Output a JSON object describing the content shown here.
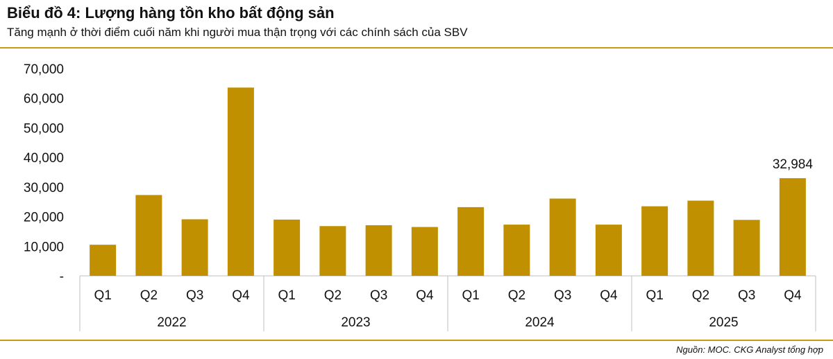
{
  "header": {
    "title": "Biểu đồ 4: Lượng hàng tồn kho bất động sản",
    "subtitle": "Tăng mạnh ở thời điểm cuối năm khi người mua thận trọng với các chính sách của SBV"
  },
  "footer": {
    "source": "Nguồn: MOC. CKG Analyst tổng hợp"
  },
  "colors": {
    "bar": "#c09000",
    "rule": "#c89a12",
    "axis": "#bfbfbf"
  },
  "chart_data": {
    "type": "bar",
    "title": "",
    "xlabel": "",
    "ylabel": "",
    "ylim": [
      0,
      70000
    ],
    "y_ticks": [
      0,
      10000,
      20000,
      30000,
      40000,
      50000,
      60000,
      70000
    ],
    "y_tick_labels": [
      "-",
      "10,000",
      "20,000",
      "30,000",
      "40,000",
      "50,000",
      "60,000",
      "70,000"
    ],
    "grid": false,
    "groups": [
      {
        "label": "2022",
        "categories": [
          "Q1",
          "Q2",
          "Q3",
          "Q4"
        ],
        "values": [
          10500,
          27300,
          19100,
          63600
        ]
      },
      {
        "label": "2023",
        "categories": [
          "Q1",
          "Q2",
          "Q3",
          "Q4"
        ],
        "values": [
          19000,
          16800,
          17100,
          16500
        ]
      },
      {
        "label": "2024",
        "categories": [
          "Q1",
          "Q2",
          "Q3",
          "Q4"
        ],
        "values": [
          23200,
          17300,
          26100,
          17300
        ]
      },
      {
        "label": "2025",
        "categories": [
          "Q1",
          "Q2",
          "Q3",
          "Q4"
        ],
        "values": [
          23500,
          25400,
          18900,
          32984
        ]
      }
    ],
    "data_labels": [
      {
        "group": "2025",
        "category": "Q4",
        "text": "32,984"
      }
    ]
  }
}
